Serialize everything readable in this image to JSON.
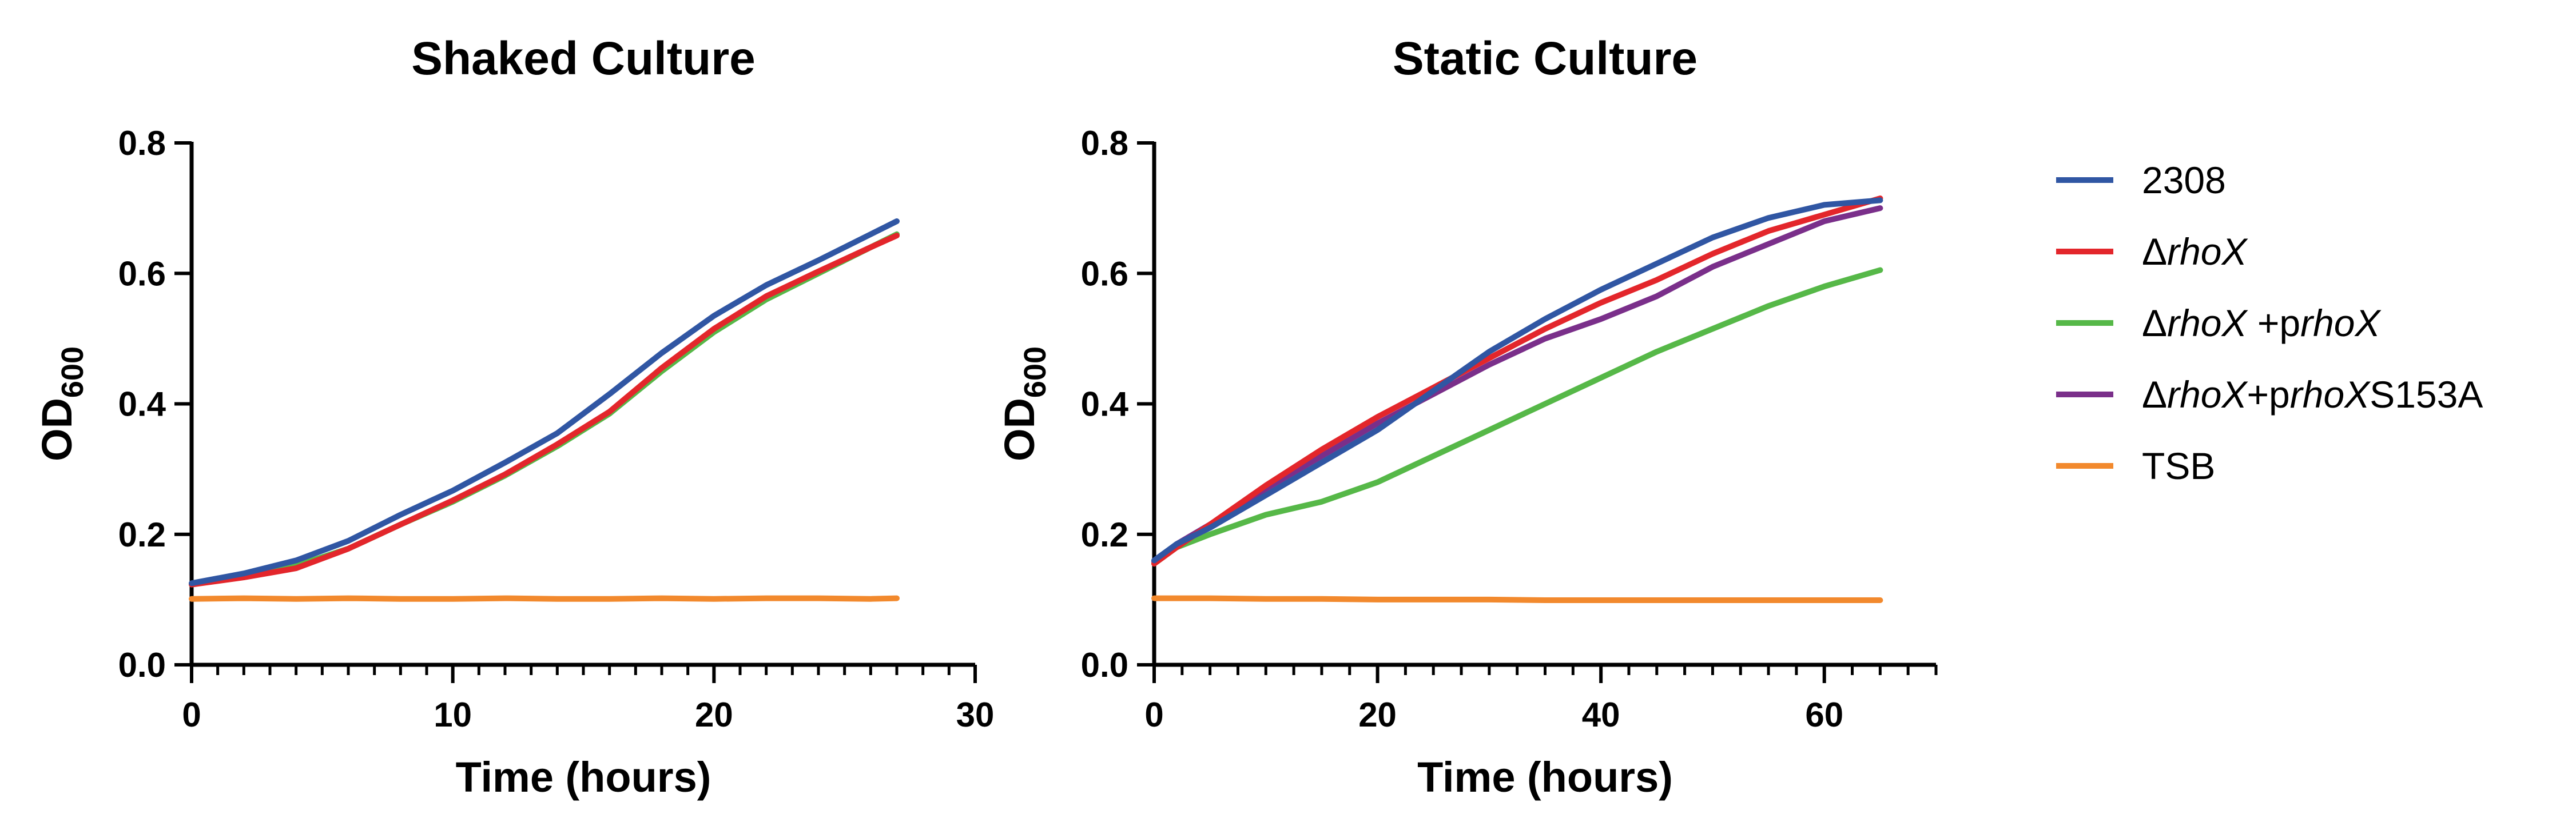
{
  "colors": {
    "2308": "#3056A3",
    "rhoX": "#E3262B",
    "rhoX_prhoX": "#56B848",
    "rhoX_prhoX_S153A": "#7A2F8A",
    "TSB": "#F2892D",
    "axis": "#000000"
  },
  "legend": {
    "entries": [
      {
        "key": "2308",
        "parts": [
          {
            "t": "2308",
            "i": false
          }
        ]
      },
      {
        "key": "rhoX",
        "parts": [
          {
            "t": "Δ",
            "i": false
          },
          {
            "t": "rhoX",
            "i": true
          }
        ]
      },
      {
        "key": "rhoX_prhoX",
        "parts": [
          {
            "t": "Δ",
            "i": false
          },
          {
            "t": "rhoX",
            "i": true
          },
          {
            "t": " +p",
            "i": false
          },
          {
            "t": "rhoX",
            "i": true
          }
        ]
      },
      {
        "key": "rhoX_prhoX_S153A",
        "parts": [
          {
            "t": "Δ",
            "i": false
          },
          {
            "t": "rhoX",
            "i": true
          },
          {
            "t": "+p",
            "i": false
          },
          {
            "t": "rhoX",
            "i": true
          },
          {
            "t": "S153A",
            "i": false
          }
        ]
      },
      {
        "key": "TSB",
        "parts": [
          {
            "t": "TSB",
            "i": false
          }
        ]
      }
    ]
  },
  "chart_data": [
    {
      "id": "shaked",
      "type": "line",
      "title": "Shaked Culture",
      "xlabel": "Time (hours)",
      "ylabel": "OD",
      "ylabel_sub": "600",
      "xlim": [
        0,
        30
      ],
      "ylim": [
        0,
        0.8
      ],
      "xticks": [
        "0",
        "10",
        "20",
        "30"
      ],
      "yticks": [
        "0.0",
        "0.2",
        "0.4",
        "0.6",
        "0.8"
      ],
      "x_minor_step": 1,
      "series": [
        {
          "key": "TSB",
          "name": "TSB",
          "x": [
            0,
            2,
            4,
            6,
            8,
            10,
            12,
            14,
            16,
            18,
            20,
            22,
            24,
            26,
            27
          ],
          "y": [
            0.101,
            0.102,
            0.101,
            0.102,
            0.101,
            0.101,
            0.102,
            0.101,
            0.101,
            0.102,
            0.101,
            0.102,
            0.102,
            0.101,
            0.102
          ]
        },
        {
          "key": "rhoX_prhoX",
          "name": "ΔrhoX +prhoX",
          "x": [
            0,
            2,
            4,
            6,
            8,
            10,
            12,
            14,
            16,
            18,
            20,
            22,
            24,
            26,
            27
          ],
          "y": [
            0.123,
            0.135,
            0.152,
            0.178,
            0.215,
            0.25,
            0.29,
            0.335,
            0.385,
            0.45,
            0.51,
            0.56,
            0.6,
            0.64,
            0.66
          ]
        },
        {
          "key": "rhoX",
          "name": "ΔrhoX",
          "x": [
            0,
            2,
            4,
            6,
            8,
            10,
            12,
            14,
            16,
            18,
            20,
            22,
            24,
            26,
            27
          ],
          "y": [
            0.123,
            0.134,
            0.148,
            0.178,
            0.215,
            0.252,
            0.292,
            0.338,
            0.388,
            0.455,
            0.515,
            0.565,
            0.603,
            0.64,
            0.658
          ]
        },
        {
          "key": "2308",
          "name": "2308",
          "x": [
            0,
            2,
            4,
            6,
            8,
            10,
            12,
            14,
            16,
            18,
            20,
            22,
            24,
            26,
            27
          ],
          "y": [
            0.125,
            0.14,
            0.16,
            0.19,
            0.23,
            0.267,
            0.31,
            0.355,
            0.415,
            0.478,
            0.535,
            0.582,
            0.62,
            0.66,
            0.68
          ]
        }
      ]
    },
    {
      "id": "static",
      "type": "line",
      "title": "Static Culture",
      "xlabel": "Time (hours)",
      "ylabel": "OD",
      "ylabel_sub": "600",
      "xlim": [
        0,
        70
      ],
      "ylim": [
        0,
        0.8
      ],
      "xticks": [
        "0",
        "20",
        "40",
        "60"
      ],
      "yticks": [
        "0.0",
        "0.2",
        "0.4",
        "0.6",
        "0.8"
      ],
      "x_minor_step": 2.5,
      "series": [
        {
          "key": "TSB",
          "name": "TSB",
          "x": [
            0,
            5,
            10,
            15,
            20,
            25,
            30,
            35,
            40,
            45,
            50,
            55,
            60,
            65
          ],
          "y": [
            0.102,
            0.102,
            0.101,
            0.101,
            0.1,
            0.1,
            0.1,
            0.099,
            0.099,
            0.099,
            0.099,
            0.099,
            0.099,
            0.099
          ]
        },
        {
          "key": "rhoX_prhoX",
          "name": "ΔrhoX +prhoX",
          "x": [
            0,
            2,
            5,
            10,
            15,
            20,
            25,
            30,
            35,
            40,
            45,
            50,
            55,
            60,
            65
          ],
          "y": [
            0.155,
            0.18,
            0.2,
            0.23,
            0.25,
            0.28,
            0.32,
            0.36,
            0.4,
            0.44,
            0.48,
            0.515,
            0.55,
            0.58,
            0.605
          ]
        },
        {
          "key": "rhoX_prhoX_S153A",
          "name": "ΔrhoX+prhoXS153A",
          "x": [
            0,
            2,
            5,
            10,
            15,
            20,
            25,
            30,
            35,
            40,
            45,
            50,
            55,
            60,
            65
          ],
          "y": [
            0.158,
            0.185,
            0.215,
            0.27,
            0.32,
            0.37,
            0.415,
            0.46,
            0.5,
            0.53,
            0.565,
            0.61,
            0.645,
            0.68,
            0.7
          ]
        },
        {
          "key": "rhoX",
          "name": "ΔrhoX",
          "x": [
            0,
            2,
            5,
            10,
            15,
            20,
            25,
            30,
            35,
            40,
            45,
            50,
            55,
            60,
            65
          ],
          "y": [
            0.155,
            0.18,
            0.215,
            0.275,
            0.33,
            0.38,
            0.425,
            0.47,
            0.515,
            0.555,
            0.59,
            0.63,
            0.665,
            0.69,
            0.715
          ]
        },
        {
          "key": "2308",
          "name": "2308",
          "x": [
            0,
            2,
            5,
            10,
            15,
            20,
            25,
            30,
            35,
            40,
            45,
            50,
            55,
            60,
            65
          ],
          "y": [
            0.16,
            0.185,
            0.21,
            0.26,
            0.31,
            0.36,
            0.42,
            0.48,
            0.53,
            0.575,
            0.615,
            0.655,
            0.685,
            0.705,
            0.712
          ]
        }
      ]
    }
  ]
}
